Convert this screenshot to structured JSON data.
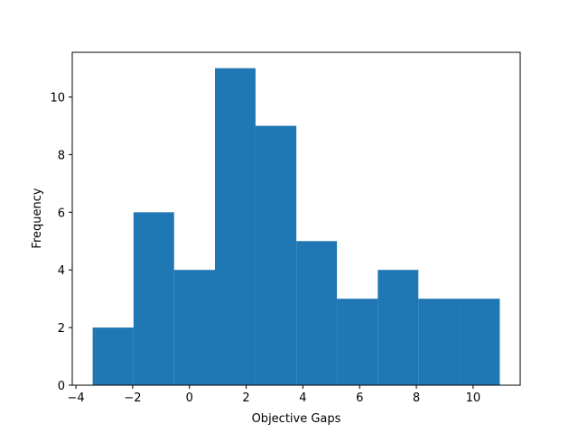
{
  "chart_data": {
    "type": "histogram",
    "x_label": "Objective Gaps",
    "y_label": "Frequency",
    "bins": [
      -3.41,
      -1.97,
      -0.54,
      0.9,
      2.33,
      3.77,
      5.2,
      6.64,
      8.07,
      9.51,
      10.94
    ],
    "values": [
      2,
      6,
      4,
      11,
      9,
      5,
      3,
      4,
      3,
      3
    ],
    "color": "#1f77b4",
    "xlim": [
      -4.13,
      11.66
    ],
    "xticks": [
      {
        "value": -4,
        "label": "−4"
      },
      {
        "value": -2,
        "label": "−2"
      },
      0,
      2,
      4,
      6,
      8,
      10
    ],
    "ylim": [
      0,
      11.55
    ],
    "yticks": [
      0,
      2,
      4,
      6,
      8,
      10
    ],
    "grid": false
  }
}
